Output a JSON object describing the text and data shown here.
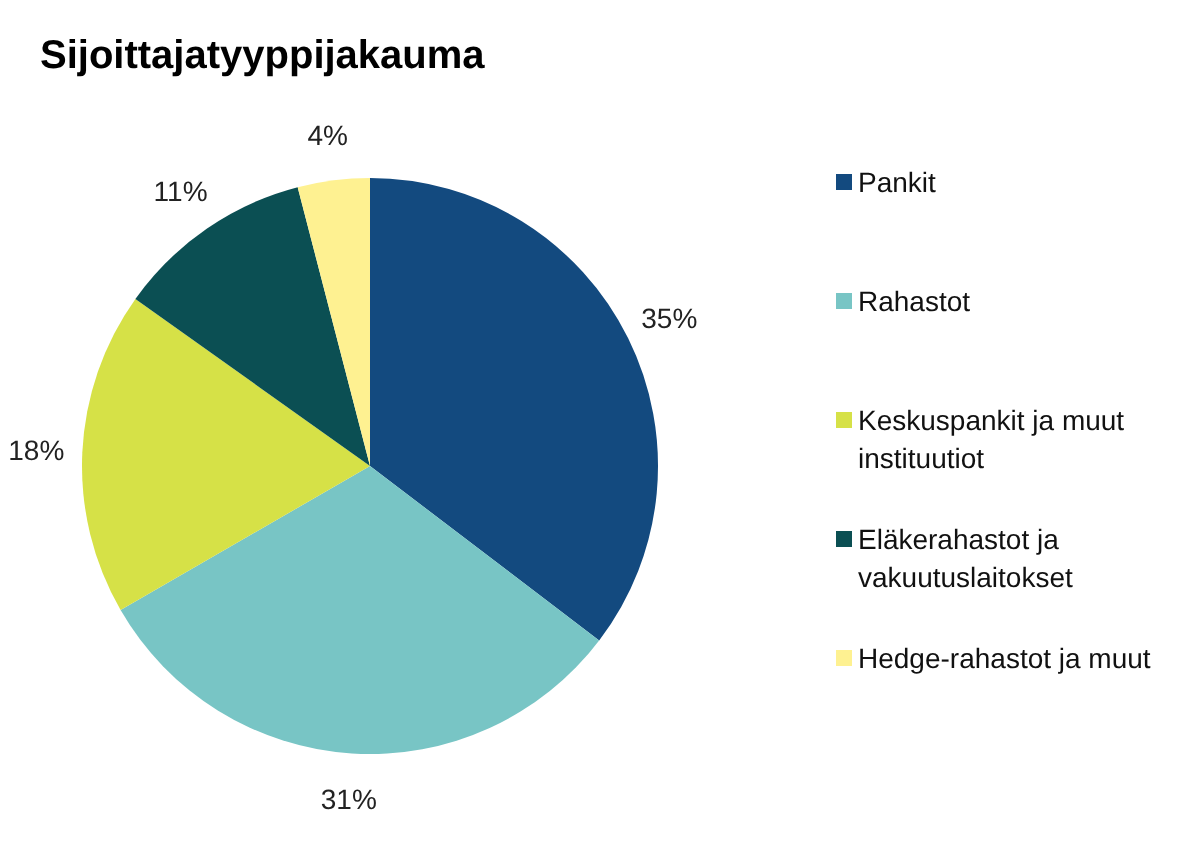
{
  "chart_data": {
    "type": "pie",
    "title": "Sijoittajatyyppijakauma",
    "categories": [
      "Pankit",
      "Rahastot",
      "Keskuspankit ja muut instituutiot",
      "Eläkerahastot ja vakuutuslaitokset",
      "Hedge-rahastot ja muut"
    ],
    "values": [
      35,
      31,
      18,
      11,
      4
    ],
    "colors": [
      "#134a7f",
      "#78c5c5",
      "#d6e147",
      "#0b4f53",
      "#fef191"
    ],
    "value_labels": [
      "35%",
      "31%",
      "18%",
      "11%",
      "4%"
    ],
    "legend": "right"
  }
}
